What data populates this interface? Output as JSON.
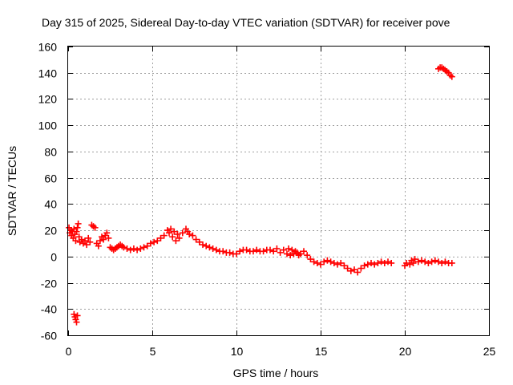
{
  "chart_data": {
    "type": "scatter",
    "title": "Day 315 of 2025, Sidereal Day-to-day VTEC variation (SDTVAR) for receiver pove",
    "xlabel": "GPS time / hours",
    "ylabel": "SDTVAR / TECUs",
    "xlim": [
      0,
      25
    ],
    "ylim": [
      -60,
      160
    ],
    "xticks": [
      0,
      5,
      10,
      15,
      20,
      25
    ],
    "yticks": [
      -60,
      -40,
      -20,
      0,
      20,
      40,
      60,
      80,
      100,
      120,
      140,
      160
    ],
    "grid": true,
    "marker": "plus",
    "color": "#ff0000",
    "series": [
      {
        "name": "SDTVAR",
        "points": [
          [
            0.05,
            22
          ],
          [
            0.1,
            18
          ],
          [
            0.15,
            20
          ],
          [
            0.2,
            16
          ],
          [
            0.25,
            19
          ],
          [
            0.3,
            14
          ],
          [
            0.35,
            21
          ],
          [
            0.4,
            17
          ],
          [
            0.45,
            12
          ],
          [
            0.5,
            19
          ],
          [
            0.55,
            22
          ],
          [
            0.6,
            25
          ],
          [
            0.65,
            15
          ],
          [
            0.7,
            11
          ],
          [
            0.8,
            13
          ],
          [
            0.9,
            10
          ],
          [
            1.0,
            12
          ],
          [
            1.1,
            9
          ],
          [
            1.2,
            14
          ],
          [
            1.3,
            11
          ],
          [
            1.4,
            24
          ],
          [
            1.5,
            23
          ],
          [
            1.6,
            22
          ],
          [
            1.7,
            10
          ],
          [
            1.8,
            8
          ],
          [
            1.9,
            12
          ],
          [
            2.0,
            15
          ],
          [
            2.1,
            13
          ],
          [
            2.2,
            16
          ],
          [
            2.3,
            18
          ],
          [
            2.4,
            14
          ],
          [
            2.5,
            7
          ],
          [
            2.6,
            6
          ],
          [
            2.7,
            5
          ],
          [
            2.8,
            6
          ],
          [
            2.9,
            7
          ],
          [
            3.0,
            8
          ],
          [
            3.1,
            9
          ],
          [
            3.2,
            8
          ],
          [
            3.3,
            7
          ],
          [
            3.5,
            6
          ],
          [
            3.7,
            5
          ],
          [
            3.9,
            6
          ],
          [
            4.1,
            5
          ],
          [
            4.3,
            6
          ],
          [
            4.5,
            7
          ],
          [
            4.7,
            8
          ],
          [
            4.9,
            10
          ],
          [
            5.1,
            11
          ],
          [
            5.3,
            12
          ],
          [
            5.5,
            14
          ],
          [
            5.7,
            16
          ],
          [
            5.9,
            20
          ],
          [
            6.0,
            18
          ],
          [
            6.1,
            21
          ],
          [
            6.2,
            15
          ],
          [
            6.3,
            19
          ],
          [
            6.4,
            12
          ],
          [
            6.5,
            17
          ],
          [
            6.6,
            14
          ],
          [
            6.8,
            18
          ],
          [
            7.0,
            21
          ],
          [
            7.1,
            19
          ],
          [
            7.2,
            17
          ],
          [
            7.4,
            16
          ],
          [
            7.6,
            13
          ],
          [
            7.8,
            11
          ],
          [
            8.0,
            9
          ],
          [
            8.2,
            8
          ],
          [
            8.4,
            7
          ],
          [
            8.6,
            6
          ],
          [
            8.8,
            5
          ],
          [
            9.0,
            4
          ],
          [
            9.2,
            4
          ],
          [
            9.4,
            3
          ],
          [
            9.6,
            3
          ],
          [
            9.8,
            2
          ],
          [
            10.0,
            2
          ],
          [
            10.2,
            4
          ],
          [
            10.4,
            5
          ],
          [
            10.6,
            5
          ],
          [
            10.8,
            4
          ],
          [
            11.0,
            4
          ],
          [
            11.2,
            5
          ],
          [
            11.4,
            4
          ],
          [
            11.6,
            4
          ],
          [
            11.8,
            5
          ],
          [
            12.0,
            5
          ],
          [
            12.2,
            4
          ],
          [
            12.4,
            6
          ],
          [
            12.6,
            3
          ],
          [
            12.8,
            5
          ],
          [
            13.0,
            2
          ],
          [
            13.1,
            6
          ],
          [
            13.2,
            1
          ],
          [
            13.3,
            5
          ],
          [
            13.4,
            2
          ],
          [
            13.5,
            4
          ],
          [
            13.6,
            3
          ],
          [
            13.7,
            1
          ],
          [
            13.8,
            2
          ],
          [
            14.0,
            4
          ],
          [
            14.2,
            1
          ],
          [
            14.4,
            -2
          ],
          [
            14.6,
            -4
          ],
          [
            14.8,
            -5
          ],
          [
            15.0,
            -6
          ],
          [
            15.2,
            -4
          ],
          [
            15.4,
            -3
          ],
          [
            15.6,
            -4
          ],
          [
            15.8,
            -5
          ],
          [
            16.0,
            -6
          ],
          [
            16.2,
            -5
          ],
          [
            16.4,
            -7
          ],
          [
            16.6,
            -9
          ],
          [
            16.8,
            -11
          ],
          [
            17.0,
            -10
          ],
          [
            17.2,
            -12
          ],
          [
            17.4,
            -9
          ],
          [
            17.6,
            -7
          ],
          [
            17.8,
            -6
          ],
          [
            18.0,
            -5
          ],
          [
            18.2,
            -6
          ],
          [
            18.4,
            -5
          ],
          [
            18.6,
            -4
          ],
          [
            18.8,
            -5
          ],
          [
            19.0,
            -4
          ],
          [
            19.2,
            -5
          ],
          [
            20.0,
            -7
          ],
          [
            20.1,
            -5
          ],
          [
            20.3,
            -6
          ],
          [
            20.4,
            -3
          ],
          [
            20.5,
            -5
          ],
          [
            20.6,
            -2
          ],
          [
            20.8,
            -4
          ],
          [
            21.0,
            -3
          ],
          [
            21.2,
            -4
          ],
          [
            21.4,
            -5
          ],
          [
            21.6,
            -4
          ],
          [
            21.8,
            -3
          ],
          [
            22.0,
            -4
          ],
          [
            22.2,
            -5
          ],
          [
            22.4,
            -4
          ],
          [
            22.6,
            -5
          ],
          [
            22.8,
            -5
          ],
          [
            22.0,
            143
          ],
          [
            22.1,
            144
          ],
          [
            22.2,
            144
          ],
          [
            22.3,
            143
          ],
          [
            22.4,
            142
          ],
          [
            22.5,
            141
          ],
          [
            22.6,
            140
          ],
          [
            22.7,
            138
          ],
          [
            22.8,
            137
          ],
          [
            0.35,
            -44
          ],
          [
            0.4,
            -46
          ],
          [
            0.45,
            -48
          ],
          [
            0.5,
            -50
          ],
          [
            0.55,
            -45
          ]
        ]
      }
    ]
  }
}
